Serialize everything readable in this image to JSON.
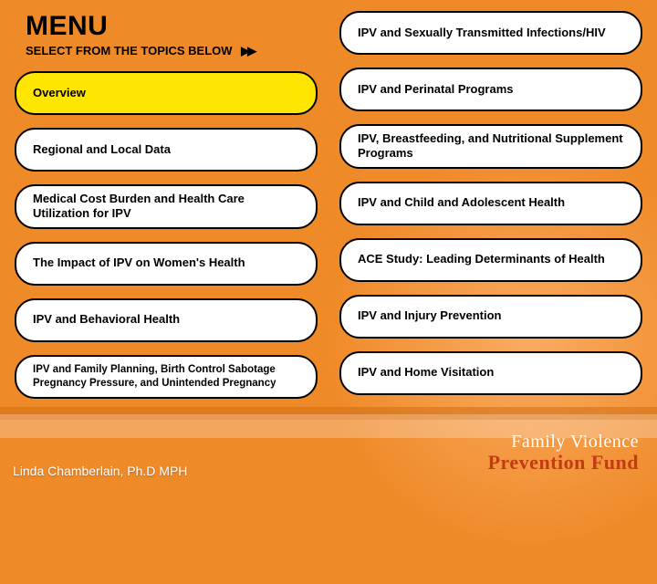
{
  "header": {
    "title": "MENU",
    "subtitle": "SELECT FROM THE TOPICS BELOW",
    "arrow_glyph": "▶▶"
  },
  "columns": {
    "left": [
      {
        "label": "Overview",
        "active": true
      },
      {
        "label": "Regional and Local Data"
      },
      {
        "label": "Medical Cost Burden and Health Care Utilization for IPV"
      },
      {
        "label": "The Impact of IPV on Women's Health"
      },
      {
        "label": "IPV and Behavioral Health"
      },
      {
        "label": "IPV and Family Planning, Birth Control Sabotage Pregnancy Pressure, and Unintended Pregnancy",
        "small": true
      }
    ],
    "right": [
      {
        "label": "IPV and Sexually Transmitted Infections/HIV"
      },
      {
        "label": "IPV and Perinatal Programs"
      },
      {
        "label": "IPV, Breastfeeding, and Nutritional Supplement Programs"
      },
      {
        "label": "IPV and Child and Adolescent Health"
      },
      {
        "label": "ACE Study: Leading Determinants of Health"
      },
      {
        "label": "IPV and Injury Prevention"
      },
      {
        "label": "IPV and Home Visitation"
      }
    ]
  },
  "footer": {
    "author": "Linda Chamberlain, Ph.D MPH",
    "logo_line1": "Family Violence",
    "logo_line2": "Prevention Fund"
  },
  "colors": {
    "background": "#ef8a29",
    "pill_bg": "#ffffff",
    "pill_border": "#000000",
    "active_bg": "#ffe600",
    "logo_accent": "#c43a15"
  }
}
